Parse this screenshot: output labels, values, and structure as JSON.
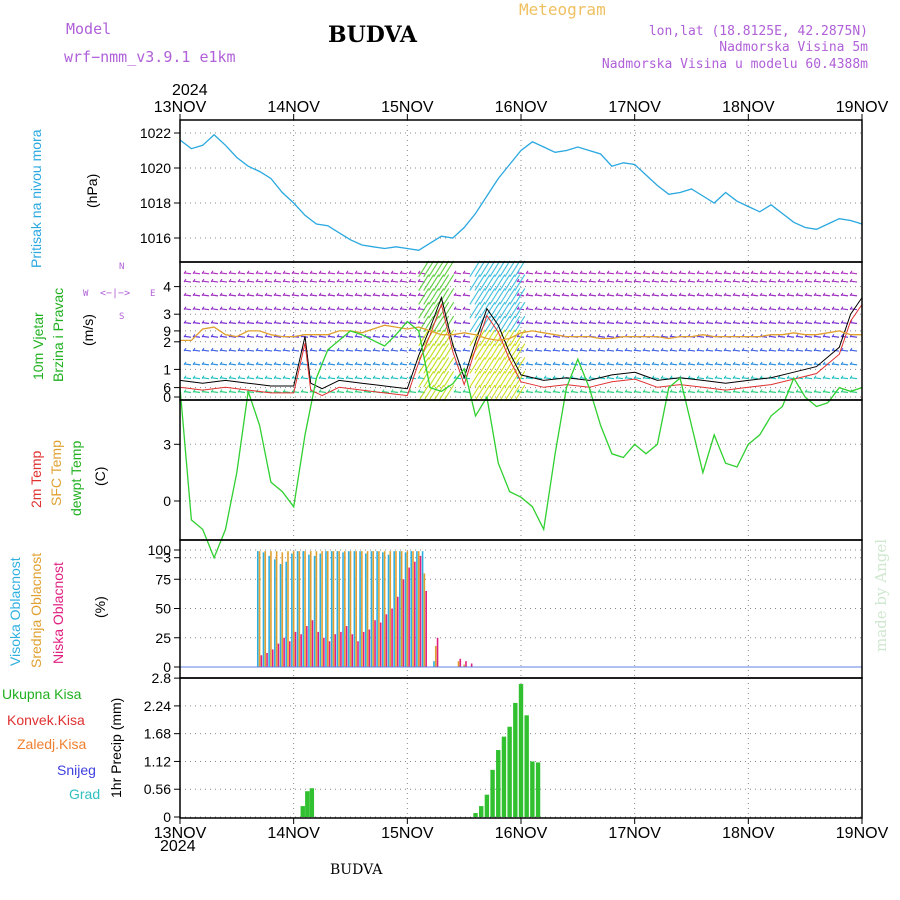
{
  "header": {
    "model_label": "Model",
    "model_name": "wrf−nmm_v3.9.1  e1km",
    "title": "BUDVA",
    "meteogram": "Meteogram",
    "lonlat": "lon,lat (18.8125E, 42.2875N)",
    "elev": "Nadmorska Visina 5m",
    "elev_model": "Nadmorska Visina u modelu 60.4388m",
    "year_top": "2024",
    "year_bottom": "2024",
    "bottom_label": "BUDVA",
    "watermark": "made by Angel"
  },
  "colors": {
    "pressure": "#2aa8e0",
    "temp2m": "#e03030",
    "sfc": "#e0a030",
    "dew": "#30d030",
    "vis": "#30b0e0",
    "mid": "#e0a030",
    "low": "#e02080",
    "precip": "#30c030",
    "label_green": "#20b020",
    "label_red": "#e03030",
    "label_orange": "#f08030",
    "label_blue": "#4040e0",
    "label_cyan": "#30c0c0",
    "grid": "#888888",
    "purple": "#b060d8"
  },
  "x_ticks": [
    "13NOV",
    "14NOV",
    "15NOV",
    "16NOV",
    "17NOV",
    "18NOV",
    "19NOV"
  ],
  "panels": {
    "pressure": {
      "labels": [
        "Pritisak na nivou mora",
        "(hPa)"
      ],
      "ticks": [
        "1022",
        "1020",
        "1018",
        "1016"
      ]
    },
    "wind": {
      "labels": [
        "10m Vjetar",
        "Brzina i Pravac",
        "(m/s)"
      ],
      "ticks": [
        "4",
        "3",
        "2",
        "1",
        "0"
      ],
      "compass": {
        "n": "N",
        "w": "W",
        "e": "E",
        "s": "S",
        "arrow": "<−|−>"
      }
    },
    "temp": {
      "labels": [
        "2m Temp",
        "SFC Temp",
        "dewpt Temp",
        "(C)"
      ],
      "ticks": [
        "9",
        "6",
        "3",
        "0",
        "−3"
      ]
    },
    "cloud": {
      "labels": [
        "Visoka Oblacnost",
        "Srednja Oblacnost",
        "Niska Oblacnost",
        "(%)"
      ],
      "ticks": [
        "100",
        "75",
        "50",
        "25",
        "0"
      ]
    },
    "precip": {
      "labels": [
        "Ukupna Kisa",
        "Konvek.Kisa",
        "Zaledj.Kisa",
        "Snijeg",
        "Grad"
      ],
      "ylabel": "1hr Precip (mm)",
      "ticks": [
        "2.8",
        "2.24",
        "1.68",
        "1.12",
        "0.56",
        "0"
      ]
    }
  },
  "chart_data": [
    {
      "type": "line",
      "title": "",
      "ylabel": "Pritisak na nivou mora (hPa)",
      "ylim": [
        1014.5,
        1023.5
      ],
      "x_days": [
        0,
        0.1,
        0.2,
        0.3,
        0.4,
        0.5,
        0.6,
        0.7,
        0.8,
        0.9,
        1.0,
        1.1,
        1.2,
        1.3,
        1.4,
        1.5,
        1.6,
        1.7,
        1.8,
        1.9,
        2.0,
        2.1,
        2.2,
        2.3,
        2.4,
        2.5,
        2.6,
        2.7,
        2.8,
        2.9,
        3.0,
        3.1,
        3.2,
        3.3,
        3.4,
        3.5,
        3.6,
        3.7,
        3.8,
        3.9,
        4.0,
        4.1,
        4.2,
        4.3,
        4.4,
        4.5,
        4.6,
        4.7,
        4.8,
        4.9,
        5.0,
        5.1,
        5.2,
        5.3,
        5.4,
        5.5,
        5.6,
        5.7,
        5.8,
        5.9,
        6.0
      ],
      "series": [
        {
          "values": [
            1021.6,
            1021.1,
            1021.3,
            1021.9,
            1021.3,
            1020.6,
            1020.1,
            1019.8,
            1019.4,
            1018.6,
            1018.0,
            1017.3,
            1016.8,
            1016.7,
            1016.3,
            1015.9,
            1015.6,
            1015.5,
            1015.4,
            1015.5,
            1015.4,
            1015.3,
            1015.7,
            1016.1,
            1016.0,
            1016.6,
            1017.4,
            1018.4,
            1019.4,
            1020.2,
            1021.0,
            1021.5,
            1021.2,
            1020.9,
            1021.0,
            1021.2,
            1021.0,
            1020.8,
            1020.1,
            1020.3,
            1020.2,
            1019.6,
            1019.0,
            1018.5,
            1018.6,
            1018.8,
            1018.4,
            1018.0,
            1018.6,
            1018.1,
            1017.8,
            1017.5,
            1017.9,
            1017.4,
            1016.9,
            1016.6,
            1016.5,
            1016.8,
            1017.1,
            1017.0,
            1016.8
          ]
        }
      ]
    },
    {
      "type": "line",
      "title": "",
      "ylabel": "10m Vjetar Brzina i Pravac (m/s)",
      "ylim": [
        0,
        4.8
      ],
      "x_days": [
        0,
        0.2,
        0.4,
        0.6,
        0.8,
        1.0,
        1.1,
        1.15,
        1.25,
        1.4,
        1.6,
        1.8,
        2.0,
        2.1,
        2.2,
        2.3,
        2.4,
        2.5,
        2.6,
        2.7,
        2.8,
        2.9,
        3.0,
        3.2,
        3.4,
        3.6,
        3.8,
        4.0,
        4.2,
        4.4,
        4.6,
        4.8,
        5.0,
        5.2,
        5.4,
        5.6,
        5.8,
        5.9,
        6.0
      ],
      "series": [
        {
          "values": [
            0.6,
            0.5,
            0.6,
            0.5,
            0.4,
            0.4,
            2.2,
            0.5,
            0.3,
            0.6,
            0.5,
            0.4,
            0.3,
            1.5,
            2.5,
            3.6,
            1.9,
            0.7,
            2.0,
            3.2,
            2.6,
            1.6,
            0.8,
            0.6,
            0.7,
            0.6,
            0.8,
            0.9,
            0.6,
            0.7,
            0.6,
            0.5,
            0.6,
            0.7,
            0.9,
            1.1,
            1.8,
            3.0,
            3.6
          ]
        }
      ]
    },
    {
      "type": "line",
      "title": "",
      "ylabel": "2m Temp / SFC Temp / dewpt Temp (C)",
      "ylim": [
        -3.8,
        9.8
      ],
      "x_days": [
        0,
        0.1,
        0.2,
        0.3,
        0.4,
        0.5,
        0.6,
        0.7,
        0.8,
        0.9,
        1.0,
        1.1,
        1.2,
        1.3,
        1.4,
        1.5,
        1.6,
        1.7,
        1.8,
        1.9,
        2.0,
        2.1,
        2.2,
        2.3,
        2.4,
        2.5,
        2.6,
        2.7,
        2.8,
        2.9,
        3.0,
        3.1,
        3.2,
        3.3,
        3.4,
        3.5,
        3.6,
        3.7,
        3.8,
        3.9,
        4.0,
        4.1,
        4.2,
        4.3,
        4.4,
        4.5,
        4.6,
        4.7,
        4.8,
        4.9,
        5.0,
        5.1,
        5.2,
        5.3,
        5.4,
        5.5,
        5.6,
        5.7,
        5.8,
        5.9,
        6.0
      ],
      "series": [
        {
          "name": "SFC Temp",
          "values": [
            8.5,
            8.5,
            9.1,
            9.2,
            8.8,
            8.7,
            9.0,
            9.0,
            8.8,
            8.7,
            8.7,
            8.8,
            8.8,
            8.8,
            9.0,
            9.0,
            8.9,
            9.1,
            9.3,
            9.2,
            9.1,
            9.2,
            9.0,
            8.8,
            8.8,
            8.9,
            8.8,
            8.6,
            8.5,
            8.6,
            8.9,
            9.0,
            8.9,
            8.8,
            8.7,
            8.7,
            8.7,
            8.6,
            8.6,
            8.7,
            8.7,
            8.7,
            8.7,
            8.6,
            8.7,
            8.7,
            8.8,
            8.7,
            8.7,
            8.7,
            8.7,
            8.7,
            8.8,
            8.8,
            8.9,
            8.8,
            8.8,
            8.9,
            9.0,
            8.8,
            8.8
          ]
        },
        {
          "name": "dewpt Temp",
          "values": [
            6.0,
            -1.0,
            -1.5,
            -3.0,
            -1.5,
            1.5,
            5.8,
            4.0,
            1.0,
            0.5,
            -0.3,
            3.5,
            6.5,
            8.0,
            8.5,
            9.0,
            8.8,
            8.5,
            8.2,
            8.8,
            9.5,
            9.0,
            6.0,
            5.8,
            6.2,
            7.0,
            4.5,
            5.5,
            2.0,
            0.5,
            0.2,
            -0.3,
            -1.5,
            2.5,
            6.0,
            7.5,
            6.0,
            4.0,
            2.5,
            2.3,
            3.0,
            2.5,
            3.0,
            6.0,
            6.5,
            4.0,
            1.5,
            3.5,
            2.0,
            1.8,
            3.0,
            3.5,
            4.5,
            5.0,
            6.5,
            5.5,
            5.0,
            5.2,
            6.0,
            5.8,
            6.0
          ]
        }
      ]
    },
    {
      "type": "bar",
      "title": "",
      "ylabel": "Visoka / Srednja / Niska Oblacnost (%)",
      "ylim": [
        0,
        100
      ],
      "x_days": [
        0.7,
        0.75,
        0.8,
        0.85,
        0.9,
        0.95,
        1.0,
        1.05,
        1.1,
        1.15,
        1.2,
        1.25,
        1.3,
        1.35,
        1.4,
        1.45,
        1.5,
        1.55,
        1.6,
        1.65,
        1.7,
        1.75,
        1.8,
        1.85,
        1.9,
        1.95,
        2.0,
        2.05,
        2.1,
        2.15,
        2.25,
        2.45,
        2.5,
        2.55
      ],
      "series": [
        {
          "name": "Visoka Oblacnost",
          "values": [
            99,
            98,
            95,
            92,
            88,
            90,
            97,
            99,
            99,
            96,
            95,
            97,
            99,
            99,
            99,
            98,
            99,
            99,
            99,
            97,
            99,
            99,
            98,
            96,
            99,
            99,
            98,
            99,
            99,
            99,
            5,
            0,
            0,
            0
          ]
        },
        {
          "name": "Srednja Oblacnost",
          "values": [
            99,
            99,
            99,
            99,
            98,
            99,
            99,
            99,
            99,
            99,
            99,
            99,
            99,
            99,
            99,
            99,
            99,
            99,
            99,
            99,
            99,
            99,
            99,
            99,
            99,
            99,
            99,
            99,
            99,
            80,
            18,
            5,
            2,
            0
          ]
        },
        {
          "name": "Niska Oblacnost",
          "values": [
            10,
            12,
            15,
            20,
            25,
            22,
            30,
            28,
            35,
            40,
            30,
            25,
            22,
            28,
            30,
            35,
            28,
            22,
            30,
            32,
            40,
            38,
            45,
            50,
            60,
            75,
            85,
            90,
            95,
            65,
            25,
            7,
            5,
            3
          ]
        }
      ]
    },
    {
      "type": "bar",
      "title": "",
      "ylabel": "1hr Precip (mm)",
      "ylim": [
        0,
        2.8
      ],
      "x_days": [
        1.08,
        1.12,
        1.16,
        2.6,
        2.65,
        2.7,
        2.75,
        2.8,
        2.85,
        2.9,
        2.95,
        3.0,
        3.05,
        3.1,
        3.15
      ],
      "series": [
        {
          "name": "Ukupna Kisa",
          "values": [
            0.22,
            0.52,
            0.58,
            0.08,
            0.22,
            0.45,
            0.95,
            1.35,
            1.62,
            1.82,
            2.3,
            2.68,
            2.05,
            1.12,
            1.1
          ]
        }
      ]
    }
  ]
}
